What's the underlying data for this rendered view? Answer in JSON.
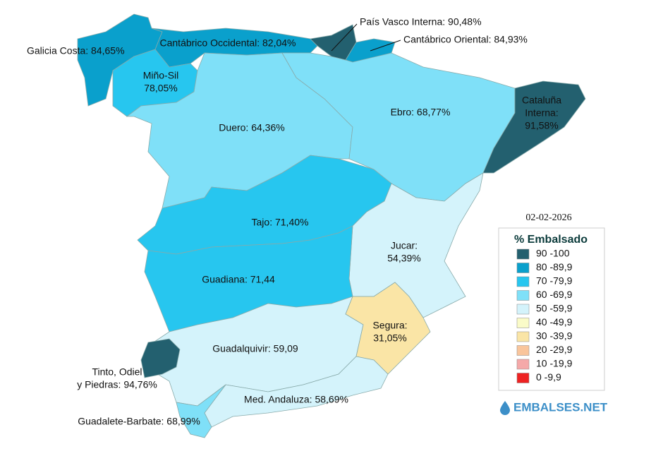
{
  "date": "02-02-2026",
  "legend": {
    "title": "% Embalsado",
    "items": [
      {
        "label": "90 -100",
        "color": "#23606f"
      },
      {
        "label": "80 -89,9",
        "color": "#0aa0cc"
      },
      {
        "label": "70 -79,9",
        "color": "#27c6ef"
      },
      {
        "label": "60 -69,9",
        "color": "#7fe0f8"
      },
      {
        "label": "50 -59,9",
        "color": "#d4f3fb"
      },
      {
        "label": "40 -49,9",
        "color": "#fafbc8"
      },
      {
        "label": "30 -39,9",
        "color": "#fae5a6"
      },
      {
        "label": "20 -29,9",
        "color": "#f9c59c"
      },
      {
        "label": "10 -19,9",
        "color": "#f5a9a9"
      },
      {
        "label": "0 -9,9",
        "color": "#ee2222"
      }
    ]
  },
  "basins": [
    {
      "lines": [
        "Galicia Costa: 84,65%"
      ]
    },
    {
      "lines": [
        "Cantábrico Occidental: 82,04%"
      ]
    },
    {
      "lines": [
        "Miño-Sil",
        "78,05%"
      ]
    },
    {
      "lines": [
        "País Vasco Interna: 90,48%"
      ]
    },
    {
      "lines": [
        "Cantábrico Oriental: 84,93%"
      ]
    },
    {
      "lines": [
        "Cataluña",
        "Interna:",
        "91,58%"
      ]
    },
    {
      "lines": [
        "Ebro: 68,77%"
      ]
    },
    {
      "lines": [
        "Duero: 64,36%"
      ]
    },
    {
      "lines": [
        "Tajo: 71,40%"
      ]
    },
    {
      "lines": [
        "Jucar:",
        "54,39%"
      ]
    },
    {
      "lines": [
        "Guadiana: 71,44"
      ]
    },
    {
      "lines": [
        "Segura:",
        "31,05%"
      ]
    },
    {
      "lines": [
        "Guadalquivir: 59,09"
      ]
    },
    {
      "lines": [
        "Tinto, Odiel",
        "y Piedras: 94,76%"
      ]
    },
    {
      "lines": [
        "Med. Andaluza: 58,69%"
      ]
    },
    {
      "lines": [
        "Guadalete-Barbate: 68,99%"
      ]
    }
  ],
  "brand": "EMBALSES.NET"
}
